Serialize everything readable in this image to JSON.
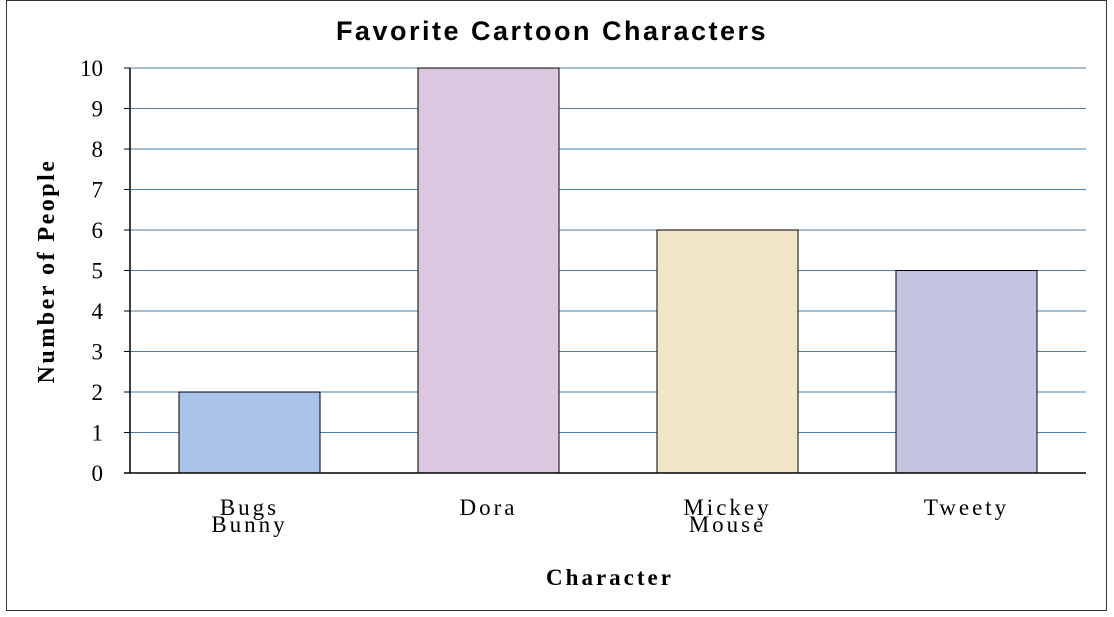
{
  "chart_data": {
    "type": "bar",
    "title": "Favorite Cartoon Characters",
    "xlabel": "Character",
    "ylabel": "Number of People",
    "categories": [
      [
        "Bugs",
        "Bunny"
      ],
      [
        "Dora"
      ],
      [
        "Mickey",
        "Mouse"
      ],
      [
        "Tweety"
      ]
    ],
    "values": [
      2,
      10,
      6,
      5
    ],
    "bar_colors": [
      "#a9c4e8",
      "#dcc7e1",
      "#f1e5c8",
      "#c3c5e0"
    ],
    "ylim": [
      0,
      10
    ],
    "yticks": [
      "0",
      "1",
      "2",
      "3",
      "4",
      "5",
      "6",
      "7",
      "8",
      "9",
      "10"
    ],
    "grid": true,
    "grid_color": "#4a7ea8"
  }
}
